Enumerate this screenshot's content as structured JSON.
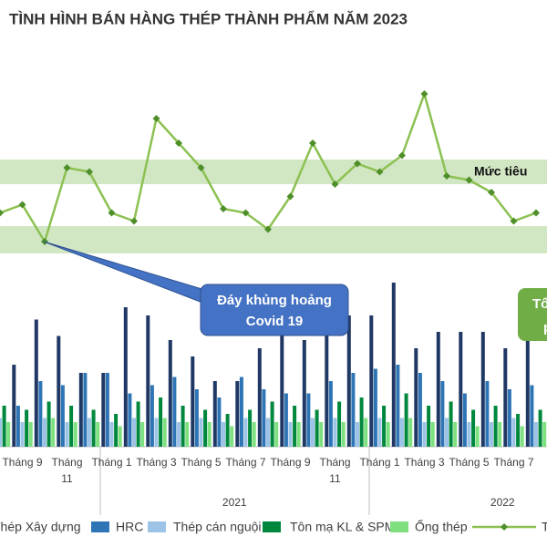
{
  "chart_data": {
    "type": "bar-line",
    "title": "TÌNH HÌNH BÁN HÀNG THÉP THÀNH PHẨM NĂM 2023",
    "categories": [
      null,
      "Tháng 9",
      null,
      "Tháng 11",
      null,
      "Tháng 1",
      null,
      "Tháng 3",
      null,
      "Tháng 5",
      null,
      "Tháng 7",
      null,
      "Tháng 9",
      null,
      "Tháng 11",
      null,
      "Tháng 1",
      null,
      "Tháng 3",
      null,
      "Tháng 5",
      null,
      "Tháng 7",
      null
    ],
    "groups": [
      {
        "label": "2021",
        "start": 5
      },
      {
        "label": "2022",
        "start": 17
      }
    ],
    "ylim": [
      0,
      100
    ],
    "series": [
      {
        "name": "Thép Xây dựng",
        "type": "bar",
        "color": "#1f3864",
        "values": [
          26,
          20,
          31,
          27,
          18,
          18,
          34,
          32,
          26,
          22,
          16,
          16,
          24,
          28,
          26,
          29,
          32,
          32,
          40,
          24,
          28,
          28,
          28,
          24,
          26
        ]
      },
      {
        "name": "HRC",
        "type": "bar",
        "color": "#2e75b6",
        "values": [
          13,
          10,
          16,
          15,
          18,
          18,
          13,
          15,
          17,
          14,
          12,
          17,
          14,
          13,
          13,
          16,
          18,
          19,
          20,
          18,
          16,
          13,
          16,
          14,
          15
        ]
      },
      {
        "name": "Thép cán nguội",
        "type": "bar",
        "color": "#9dc3e6",
        "values": [
          7,
          6,
          7,
          6,
          7,
          6,
          7,
          7,
          6,
          7,
          6,
          7,
          7,
          6,
          7,
          7,
          6,
          7,
          7,
          6,
          7,
          6,
          6,
          7,
          6
        ]
      },
      {
        "name": "Tôn mạ KL & SPM",
        "type": "bar",
        "color": "#00873e",
        "values": [
          10,
          9,
          11,
          10,
          9,
          8,
          11,
          12,
          10,
          9,
          8,
          9,
          11,
          10,
          9,
          11,
          12,
          10,
          13,
          10,
          11,
          9,
          10,
          8,
          9
        ]
      },
      {
        "name": "Ống thép",
        "type": "bar",
        "color": "#7ee07e",
        "values": [
          6,
          6,
          7,
          6,
          6,
          5,
          6,
          7,
          6,
          6,
          5,
          6,
          6,
          6,
          6,
          6,
          7,
          6,
          7,
          6,
          6,
          5,
          6,
          5,
          6
        ]
      },
      {
        "name": "T",
        "type": "line",
        "color": "#8cc152",
        "marker_color": "#4e8f2a",
        "values": [
          57,
          59,
          50,
          68,
          67,
          57,
          55,
          80,
          74,
          68,
          58,
          57,
          53,
          61,
          74,
          64,
          69,
          67,
          71,
          86,
          66,
          65,
          62,
          55,
          57
        ]
      }
    ],
    "annotations": [
      {
        "text": "Mức tiêu"
      },
      {
        "lines": [
          "Đáy khủng hoảng",
          "Covid 19"
        ]
      },
      {
        "lines": [
          "Tổ",
          "p"
        ]
      }
    ]
  }
}
